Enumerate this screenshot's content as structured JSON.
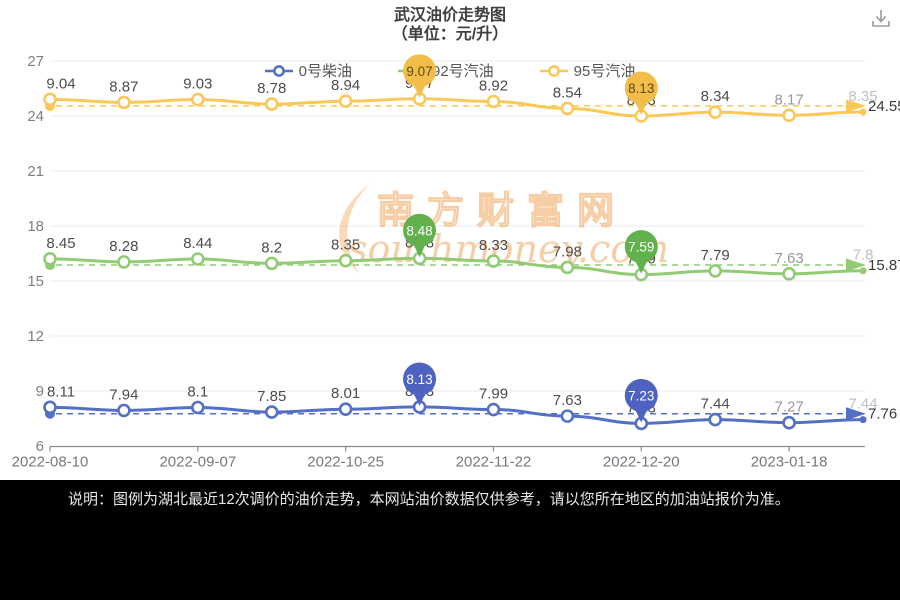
{
  "header": {
    "title_line1": "武汉油价走势图",
    "title_line2": "（单位：元/升）"
  },
  "toolbar": {
    "download_icon": "download-icon"
  },
  "legend": [
    {
      "label": "0号柴油",
      "color": "#5470c6"
    },
    {
      "label": "92号汽油",
      "color": "#91cc75"
    },
    {
      "label": "95号汽油",
      "color": "#fac858"
    }
  ],
  "chart_data": {
    "type": "line",
    "title": "武汉油价走势图（单位：元/升）",
    "xlabel": "",
    "ylabel": "",
    "ylim": [
      6,
      27
    ],
    "y_ticks": [
      6,
      9,
      12,
      15,
      18,
      21,
      24,
      27
    ],
    "grid": true,
    "legend_position": "top",
    "x_labels": [
      "2022-08-10",
      "2022-09-07",
      "2022-10-25",
      "2022-11-22",
      "2022-12-20",
      "2023-01-18"
    ],
    "x_label_point_indices": [
      0,
      2,
      4,
      6,
      8,
      10
    ],
    "series": [
      {
        "name": "95号汽油",
        "color": "#fac858",
        "balloon_color": "#f3bd49",
        "balloon_text_color": "#5f4c17",
        "values": [
          9.04,
          8.87,
          9.03,
          8.78,
          8.94,
          9.07,
          8.92,
          8.54,
          8.13,
          8.34,
          8.17,
          8.35
        ],
        "plot_offset": 15.87,
        "avg_line_label": "24.55",
        "highlight_indices": [
          5,
          8
        ]
      },
      {
        "name": "92号汽油",
        "color": "#91cc75",
        "balloon_color": "#63b14d",
        "balloon_text_color": "#ffffff",
        "values": [
          8.45,
          8.28,
          8.44,
          8.2,
          8.35,
          8.48,
          8.33,
          7.98,
          7.59,
          7.79,
          7.63,
          7.8
        ],
        "plot_offset": 7.76,
        "avg_line_label": "15.87",
        "highlight_indices": [
          5,
          8
        ]
      },
      {
        "name": "0号柴油",
        "color": "#5470c6",
        "balloon_color": "#4e63c0",
        "balloon_text_color": "#ffffff",
        "values": [
          8.11,
          7.94,
          8.1,
          7.85,
          8.01,
          8.13,
          7.99,
          7.63,
          7.23,
          7.44,
          7.27,
          7.44
        ],
        "plot_offset": 0,
        "avg_line_label": "7.76",
        "highlight_indices": [
          5,
          8
        ]
      }
    ],
    "label_colors": {
      "normal": "#4d4d4d",
      "fade1": "#97979d",
      "fade2": "#bdc0c7"
    }
  },
  "watermark": {
    "cn": "南方财富网",
    "en": "southmoney.com",
    "color": "#f0a75e"
  },
  "footer": {
    "note": "说明：图例为湖北最近12次调价的油价走势，本网站油价数据仅供参考，请以您所在地区的加油站报价为准。"
  }
}
